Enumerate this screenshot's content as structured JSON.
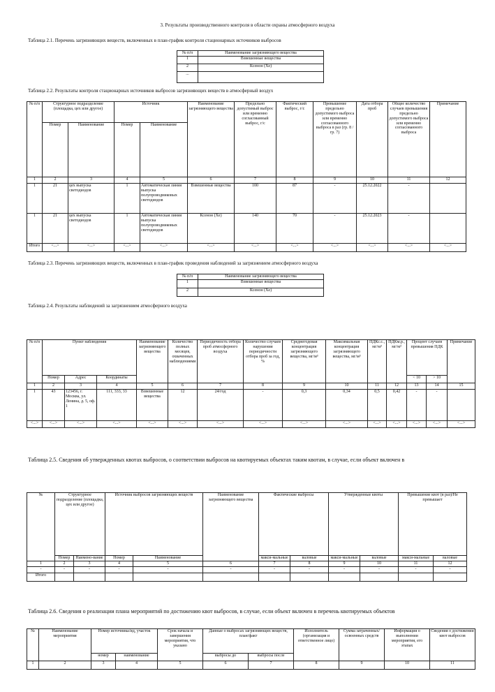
{
  "section_title": "3. Результаты производственного контроля в области охраны атмосферного воздуха",
  "table_2_1": {
    "caption": "Таблица 2.1. Перечень загрязняющих веществ, включенных в план-график контроля стационарных источников выбросов",
    "header": [
      "№ п/п",
      "Наименование загрязняющего вещества"
    ],
    "rows": [
      [
        "1",
        "Взвешенные вещества"
      ],
      [
        "2",
        "Ксенон (Xe)"
      ],
      [
        "..."
      ]
    ]
  },
  "table_2_2": {
    "caption": "Таблица 2.2. Результаты контроля стационарных источников выбросов загрязняющих веществ в атмосферный воздух",
    "header": [
      [
        "№ п/п",
        "Структурное подразделение (площадка, цех или другое)",
        "Источник",
        "Наименование загрязняющего вещества",
        "Предельно допустимый выброс или временно согласованный выброс, г/с",
        "Фактический выброс, г/с",
        "Превышение предельно допустимого выброса или временно согласованного выброса в раз (гр. 8 / гр. 7)",
        "Дата отбора проб",
        "Общее количество случаев превышения предельно допустимого выброса или временно согласованного выброса",
        "Примечание"
      ],
      [
        "Номер",
        "Наименование",
        "Номер",
        "Наименование"
      ]
    ],
    "numbering": [
      "1",
      "2",
      "3",
      "4",
      "5",
      "6",
      "7",
      "8",
      "9",
      "10",
      "11",
      "12"
    ],
    "rows": [
      [
        "1",
        "21",
        "цех выпуска светодиодов",
        "1",
        "Автоматическая линия выпуска полупроводниковых светодиодов",
        "Взвешенные вещества",
        "100",
        "87",
        "-",
        "25.12.2022",
        "-"
      ],
      [
        "1",
        "21",
        "цех выпуска светодиодов",
        "1",
        "Автоматическая линия выпуска полупроводниковых светодиодов",
        "Ксенон (Xe)",
        "140",
        "70",
        "-",
        "25.12.2023",
        "-"
      ]
    ],
    "total": [
      "Итого",
      "<...>",
      "<...>",
      "<...>",
      "<...>",
      "<...>",
      "<...>",
      "<...>",
      "<...>",
      "<...>",
      "<...>",
      "<...>"
    ]
  },
  "table_2_3": {
    "caption": "Таблица 2.3. Перечень загрязняющих веществ, включенных в план-график проведения наблюдений за загрязнением атмосферного воздуха",
    "header": [
      "№ п/п",
      "Наименование загрязняющего вещества"
    ],
    "rows": [
      [
        "1",
        "Взвешенные вещества"
      ],
      [
        "2",
        "Ксенон (Xe)"
      ]
    ]
  },
  "table_2_4": {
    "caption": "Таблица 2.4. Результаты наблюдений за загрязнением атмосферного воздуха",
    "header": [
      [
        "№ п/п",
        "Пункт наблюдения",
        "Наименование загрязняющего вещества",
        "Количество полных месяцев, охваченных наблюдениями",
        "Периодичность отбора проб атмосферного воздуха",
        "Количество случаев нарушения периодичности отбора проб за год, %",
        "Среднегодовая концентрация загрязняющего вещества, мг/м³",
        "Максимальная концентрация загрязняющего вещества, мг/м³",
        "ПДКс.с., мг/м³",
        "ПДКм.р., мг/м³",
        "Процент случаев превышения ПДК",
        "Примечание"
      ],
      [
        "Номер",
        "Адрес",
        "Координаты",
        "< 10",
        "> 10"
      ]
    ],
    "numbering": [
      "1",
      "2",
      "3",
      "4",
      "5",
      "6",
      "7",
      "8",
      "9",
      "10",
      "11",
      "12",
      "13",
      "14",
      "15"
    ],
    "rows": [
      [
        "1",
        "43",
        "123456, г. Москва, ул. Ленина, д. 5, оф. 1",
        "111, 333, 33",
        "Взвешенные вещества",
        "12",
        "24/год",
        "-",
        "0,3",
        "0,34",
        "0,5",
        "0,42",
        "-",
        "-"
      ],
      [
        "<...>",
        "<...>",
        "<...>",
        "<...>",
        "<...>",
        "<...>",
        "<...>",
        "<...>",
        "<...>",
        "<...>",
        "<...>",
        "<...>",
        "<...>",
        "<...>",
        "<...>"
      ]
    ]
  },
  "table_2_5": {
    "caption": "Таблица 2.5. Сведения об утвержденных квотах выбросов, о соответствии выбросов на квотируемых объектах таким квотам, в случае, если объект включен в",
    "header": [
      [
        "№",
        "Структурное подразделение (площадка, цех или другое)",
        "Источник выбросов загрязняющих веществ",
        "Наименование загрязняющего вещества",
        "Фактические выбросы",
        "Утвержденные квоты",
        "Превышение квот (в раз)/Не превышает"
      ],
      [
        "Номер",
        "Наимено-вание",
        "Номер",
        "Наименование",
        "макси-мальные",
        "валовые",
        "макси-мальные",
        "валовые",
        "макси-мальные",
        "валовые"
      ]
    ],
    "numbering": [
      "1",
      "2",
      "3",
      "4",
      "5",
      "6",
      "7",
      "8",
      "9",
      "10",
      "11",
      "12"
    ],
    "rows": [
      [
        "-",
        "-",
        "-",
        "-",
        "-",
        "-",
        "-",
        "-",
        "-",
        "-",
        "-",
        "-"
      ]
    ],
    "total": [
      "Итого"
    ]
  },
  "table_2_6": {
    "caption": "Таблица 2.6. Сведения о реализации плана мероприятий по достижению квот выбросов, в случае, если объект включен в перечень квотируемых объектов",
    "header": [
      [
        "№",
        "Наименование мероприятия",
        "Номер источника/ид, участок",
        "Срок начала и завершения мероприятия, что указано",
        "Данные о выбросах загрязняющих веществ, план/факт",
        "Исполнитель (организация и ответственное лицо)",
        "Сумма затраченных/освоенных средств",
        "Информация о выполнении мероприятия, его этапах",
        "Сведения о достижении квот выбросов"
      ],
      [
        "номер",
        "наименование",
        "выбросы до",
        "выбросы после"
      ]
    ],
    "numbering": [
      "1",
      "2",
      "3",
      "4",
      "5",
      "6",
      "7",
      "8",
      "9",
      "10",
      "11"
    ]
  }
}
